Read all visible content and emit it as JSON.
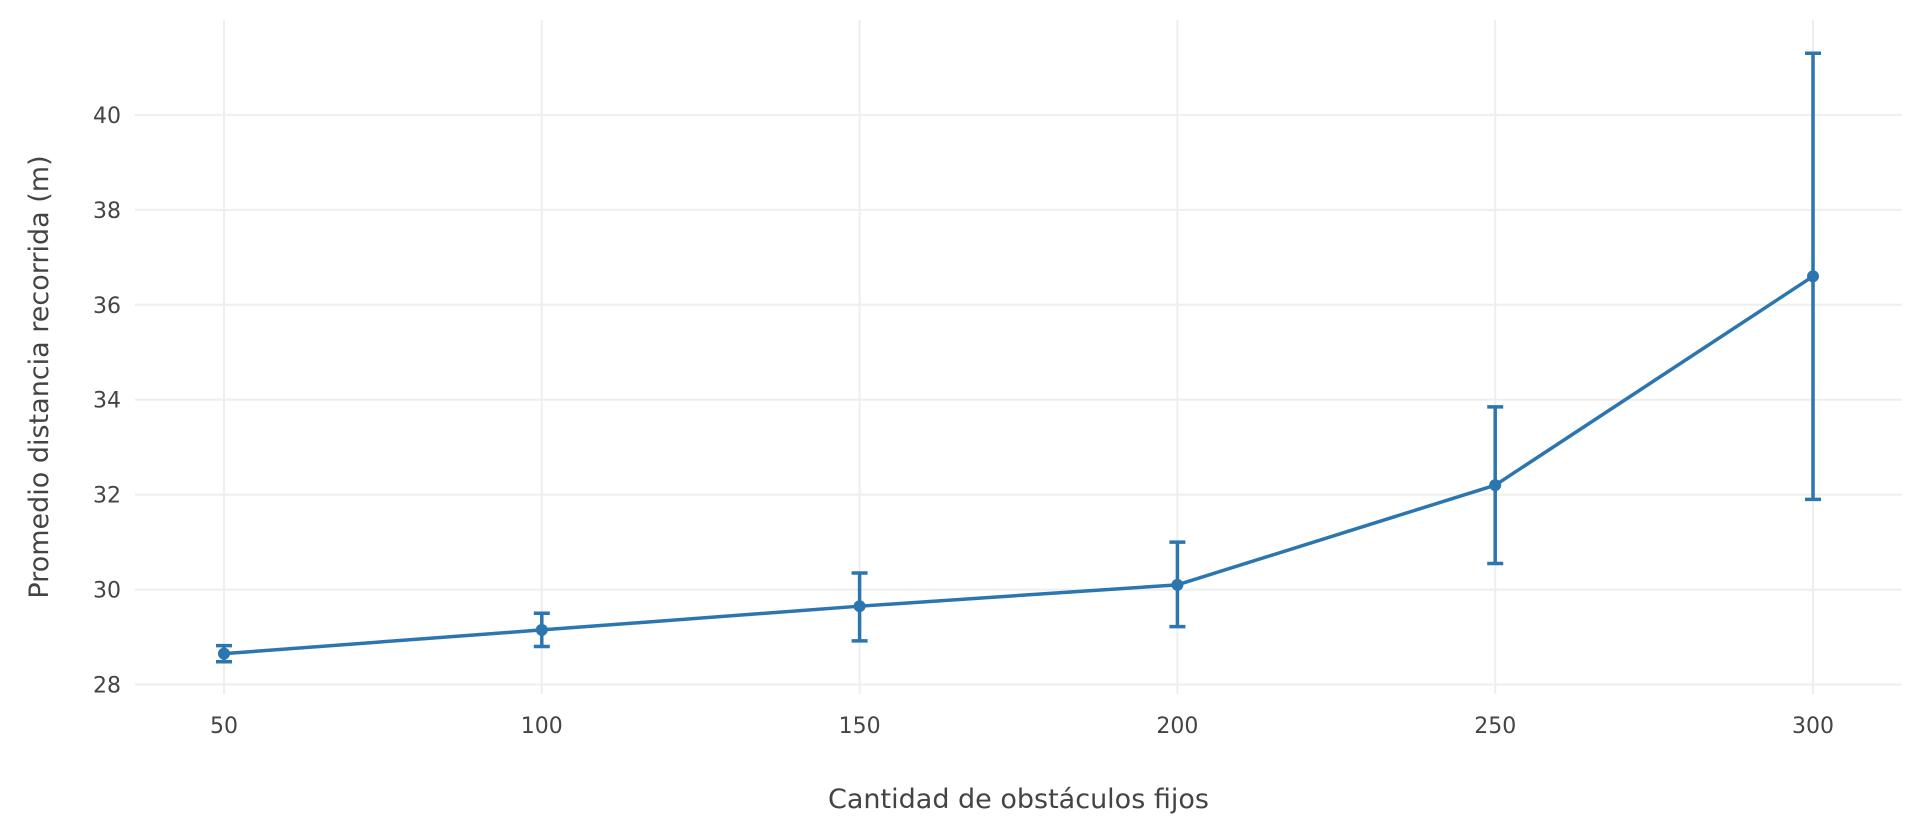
{
  "chart_data": {
    "type": "line",
    "title": "",
    "xlabel": "Cantidad de obstáculos fijos",
    "ylabel": "Promedio distancia recorrida (m)",
    "xlim": [
      36,
      314
    ],
    "ylim": [
      27.8,
      42.0
    ],
    "grid": true,
    "legend": "none",
    "x_ticks": [
      50,
      100,
      150,
      200,
      250,
      300
    ],
    "y_ticks": [
      28,
      30,
      32,
      34,
      36,
      38,
      40
    ],
    "x_tick_labels": [
      "50",
      "100",
      "150",
      "200",
      "250",
      "300"
    ],
    "y_tick_labels": [
      "28",
      "30",
      "32",
      "34",
      "36",
      "38",
      "40"
    ],
    "colors": {
      "series": "#2c76b0",
      "grid": "#eeeeee",
      "text": "#444444"
    },
    "series": [
      {
        "x": [
          50,
          100,
          150,
          200,
          250,
          300
        ],
        "y": [
          28.65,
          29.15,
          29.65,
          30.1,
          32.2,
          36.6
        ],
        "error_upper": [
          28.82,
          29.5,
          30.35,
          31.0,
          33.85,
          41.3
        ],
        "error_lower": [
          28.48,
          28.8,
          28.92,
          29.22,
          30.55,
          31.9
        ]
      }
    ]
  }
}
